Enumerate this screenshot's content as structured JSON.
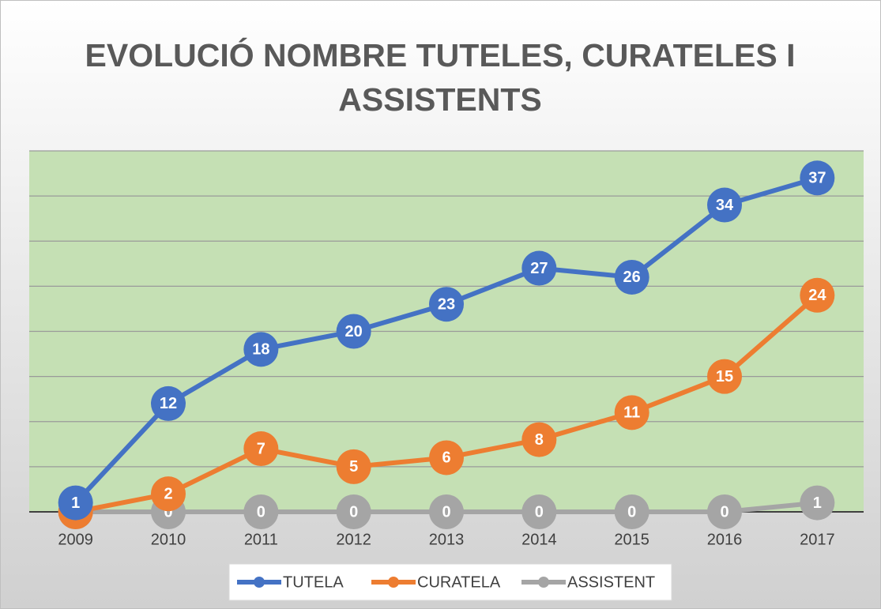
{
  "chart_data": {
    "type": "line",
    "title": "EVOLUCIÓ NOMBRE TUTELES, CURATELES I ASSISTENTS",
    "categories": [
      "2009",
      "2010",
      "2011",
      "2012",
      "2013",
      "2014",
      "2015",
      "2016",
      "2017"
    ],
    "series": [
      {
        "name": "TUTELA",
        "color": "#4472c4",
        "values": [
          1,
          12,
          18,
          20,
          23,
          27,
          26,
          34,
          37
        ]
      },
      {
        "name": "CURATELA",
        "color": "#ed7d31",
        "values": [
          0,
          2,
          7,
          5,
          6,
          8,
          11,
          15,
          24
        ]
      },
      {
        "name": "ASSISTENT",
        "color": "#a5a5a5",
        "values": [
          0,
          0,
          0,
          0,
          0,
          0,
          0,
          0,
          1
        ]
      }
    ],
    "ylim": [
      0,
      40
    ],
    "yticks": [
      0,
      5,
      10,
      15,
      20,
      25,
      30,
      35,
      40
    ],
    "grid": true,
    "plot_background": "#c5e0b4",
    "legend": "bottom"
  }
}
